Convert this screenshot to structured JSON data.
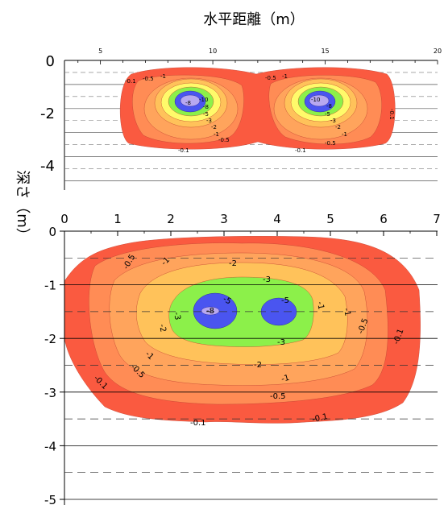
{
  "chart_data": [
    {
      "type": "contour",
      "title": "水平距離（m）",
      "xlabel": "",
      "ylabel": "深さ（m）",
      "x_ticks": [
        5,
        10,
        15,
        20
      ],
      "xlim": [
        5,
        20
      ],
      "y_ticks": [
        0,
        -2,
        -4
      ],
      "ylim": [
        -5,
        0
      ],
      "sources": [
        {
          "x": 10,
          "depth": -1.5
        },
        {
          "x": 15,
          "depth": -1.5
        }
      ],
      "contour_levels": [
        -0.1,
        -0.5,
        -1,
        -2,
        -3,
        -5,
        -8,
        -10
      ],
      "contour_labels": [
        "-0.1",
        "-0.5",
        "-1",
        "-2",
        "-3",
        "-5",
        "-8",
        "-10"
      ],
      "colors": [
        "#fa5a40",
        "#ff8c55",
        "#ffc25a",
        "#fffa6a",
        "#8cf04a",
        "#4a55f0",
        "#b8a8f0"
      ]
    },
    {
      "type": "contour",
      "xlabel": "",
      "ylabel": "深さ（m）",
      "x_ticks": [
        0,
        1,
        2,
        3,
        4,
        5,
        6,
        7
      ],
      "xlim": [
        0,
        7.1
      ],
      "y_ticks": [
        0,
        -1,
        -2,
        -3,
        -4,
        -5
      ],
      "ylim": [
        -5.1,
        0
      ],
      "sources": [
        {
          "x": 2.8,
          "depth": -1.5
        },
        {
          "x": 4.0,
          "depth": -1.5
        }
      ],
      "contour_levels": [
        -0.1,
        -0.5,
        -1,
        -2,
        -3,
        -5,
        -8
      ],
      "contour_labels": [
        "-0.1",
        "-0.5",
        "-1",
        "-2",
        "-3",
        "-5",
        "-8"
      ],
      "colors": [
        "#fa5a40",
        "#ff8c55",
        "#ffc25a",
        "#fffa6a",
        "#8cf04a",
        "#4a55f0",
        "#b8a8f0"
      ]
    }
  ],
  "labels": {
    "title": "水平距離（m）",
    "ylabel": "深さ（m）"
  }
}
